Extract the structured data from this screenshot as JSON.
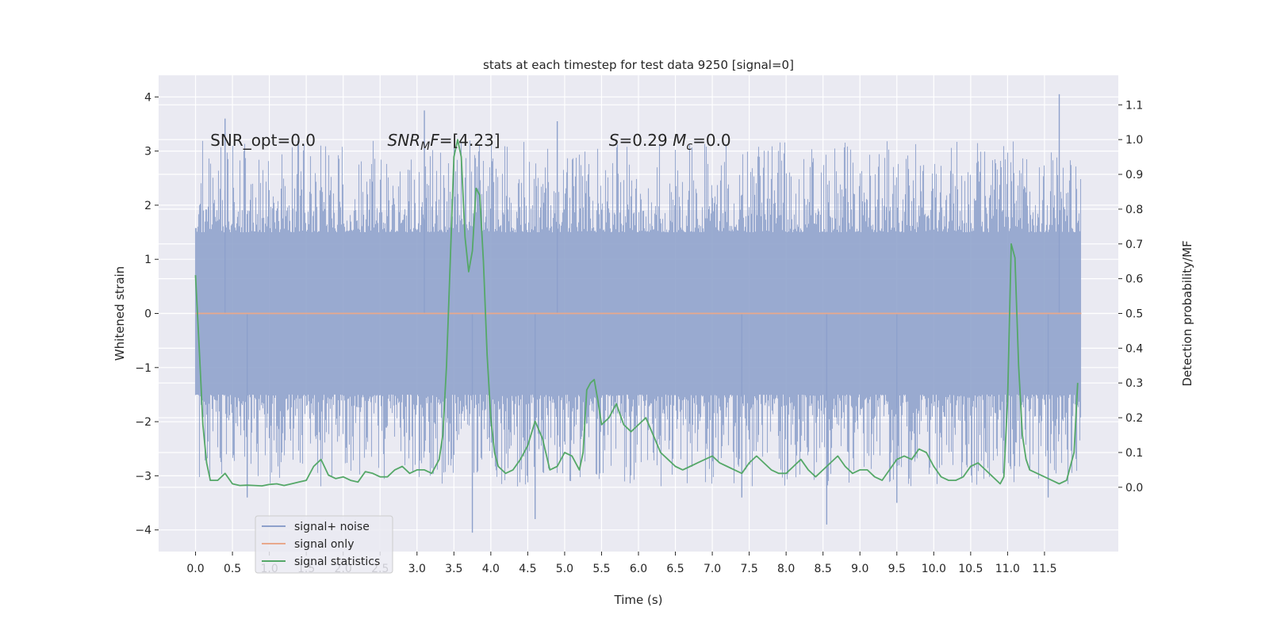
{
  "chart_data": {
    "type": "line",
    "title": "stats at each timestep for test data 9250 [signal=0]",
    "xlabel": "Time (s)",
    "ylabel": "Whitened strain",
    "y2label": "Detection probability/MF",
    "xlim": [
      -0.5,
      12.5
    ],
    "ylim": [
      -4.4,
      4.4
    ],
    "y2lim": [
      -0.185,
      1.185
    ],
    "x_ticks": [
      0.0,
      0.5,
      1.0,
      1.5,
      2.0,
      2.5,
      3.0,
      3.5,
      4.0,
      4.5,
      5.0,
      5.5,
      6.0,
      6.5,
      7.0,
      7.5,
      8.0,
      8.5,
      9.0,
      9.5,
      10.0,
      10.5,
      11.0,
      11.5
    ],
    "x_tick_labels": [
      "0.0",
      "0.5",
      "1.0",
      "1.5",
      "2.0",
      "2.5",
      "3.0",
      "3.5",
      "4.0",
      "4.5",
      "5.0",
      "5.5",
      "6.0",
      "6.5",
      "7.0",
      "7.5",
      "8.0",
      "8.5",
      "9.0",
      "9.5",
      "10.0",
      "10.5",
      "11.0",
      "11.5"
    ],
    "y_ticks": [
      -4,
      -3,
      -2,
      -1,
      0,
      1,
      2,
      3,
      4
    ],
    "y_tick_labels": [
      "−4",
      "−3",
      "−2",
      "−1",
      "0",
      "1",
      "2",
      "3",
      "4"
    ],
    "y2_ticks": [
      0.0,
      0.1,
      0.2,
      0.3,
      0.4,
      0.5,
      0.6,
      0.7,
      0.8,
      0.9,
      1.0,
      1.1
    ],
    "y2_tick_labels": [
      "0.0",
      "0.1",
      "0.2",
      "0.3",
      "0.4",
      "0.5",
      "0.6",
      "0.7",
      "0.8",
      "0.9",
      "1.0",
      "1.1"
    ],
    "grid": true,
    "legend_position": "bottom-left",
    "annotations": [
      {
        "x": 0.2,
        "y": 3.2,
        "parts": [
          {
            "text": "SNR_opt=0.0"
          }
        ]
      },
      {
        "x": 2.6,
        "y": 3.2,
        "parts": [
          {
            "text": "SNR",
            "italic": true
          },
          {
            "text": "M",
            "italic": true,
            "sub": true
          },
          {
            "text": "F",
            "italic": true
          },
          {
            "text": "=[4.23]"
          }
        ]
      },
      {
        "x": 5.6,
        "y": 3.2,
        "parts": [
          {
            "text": "S",
            "italic": true
          },
          {
            "text": "=0.29   "
          },
          {
            "text": "M",
            "italic": true
          },
          {
            "text": "c",
            "italic": true,
            "sub": true
          },
          {
            "text": "=0.0"
          }
        ]
      }
    ],
    "series": [
      {
        "name": "signal+ noise",
        "color": "#8da0cb",
        "axis": "left",
        "x_range": [
          0.0,
          12.0
        ],
        "envelope_typical": [
          -1.5,
          1.5
        ],
        "peaks": [
          {
            "x": 0.4,
            "y": 3.6
          },
          {
            "x": 3.1,
            "y": 3.75
          },
          {
            "x": 4.9,
            "y": 3.55
          },
          {
            "x": 11.7,
            "y": 4.05
          },
          {
            "x": 3.75,
            "y": -4.05
          },
          {
            "x": 4.6,
            "y": -3.8
          },
          {
            "x": 8.55,
            "y": -3.9
          },
          {
            "x": 9.5,
            "y": -3.5
          },
          {
            "x": 0.7,
            "y": -3.4
          },
          {
            "x": 7.4,
            "y": -3.4
          },
          {
            "x": 11.55,
            "y": -3.4
          }
        ]
      },
      {
        "name": "signal only",
        "color": "#e8a88c",
        "axis": "left",
        "x": [
          0.0,
          12.0
        ],
        "y": [
          0.0,
          0.0
        ]
      },
      {
        "name": "signal statistics",
        "color": "#55a868",
        "axis": "right",
        "x": [
          0.0,
          0.05,
          0.1,
          0.15,
          0.2,
          0.3,
          0.4,
          0.5,
          0.6,
          0.7,
          0.8,
          0.9,
          1.0,
          1.1,
          1.2,
          1.3,
          1.4,
          1.5,
          1.6,
          1.7,
          1.8,
          1.9,
          2.0,
          2.1,
          2.2,
          2.3,
          2.4,
          2.5,
          2.6,
          2.7,
          2.8,
          2.9,
          3.0,
          3.1,
          3.2,
          3.3,
          3.35,
          3.4,
          3.45,
          3.5,
          3.55,
          3.6,
          3.65,
          3.7,
          3.75,
          3.8,
          3.85,
          3.9,
          3.95,
          4.0,
          4.05,
          4.1,
          4.2,
          4.3,
          4.4,
          4.5,
          4.6,
          4.7,
          4.8,
          4.9,
          5.0,
          5.1,
          5.2,
          5.25,
          5.3,
          5.35,
          5.4,
          5.45,
          5.5,
          5.6,
          5.7,
          5.8,
          5.9,
          6.0,
          6.1,
          6.2,
          6.3,
          6.4,
          6.5,
          6.6,
          6.7,
          6.8,
          6.9,
          7.0,
          7.1,
          7.2,
          7.3,
          7.4,
          7.5,
          7.6,
          7.7,
          7.8,
          7.9,
          8.0,
          8.1,
          8.2,
          8.3,
          8.4,
          8.5,
          8.6,
          8.7,
          8.8,
          8.9,
          9.0,
          9.1,
          9.2,
          9.3,
          9.4,
          9.5,
          9.6,
          9.7,
          9.8,
          9.9,
          10.0,
          10.1,
          10.2,
          10.3,
          10.4,
          10.5,
          10.6,
          10.7,
          10.8,
          10.9,
          10.95,
          11.0,
          11.05,
          11.1,
          11.15,
          11.2,
          11.25,
          11.3,
          11.4,
          11.5,
          11.6,
          11.7,
          11.8,
          11.9,
          11.95
        ],
        "y": [
          0.61,
          0.4,
          0.18,
          0.07,
          0.02,
          0.02,
          0.04,
          0.01,
          0.005,
          0.006,
          0.005,
          0.004,
          0.008,
          0.01,
          0.005,
          0.01,
          0.015,
          0.02,
          0.06,
          0.08,
          0.035,
          0.025,
          0.03,
          0.02,
          0.015,
          0.045,
          0.04,
          0.03,
          0.03,
          0.05,
          0.06,
          0.04,
          0.05,
          0.05,
          0.04,
          0.08,
          0.15,
          0.35,
          0.65,
          0.95,
          1.0,
          0.95,
          0.72,
          0.62,
          0.68,
          0.86,
          0.84,
          0.65,
          0.38,
          0.2,
          0.1,
          0.06,
          0.04,
          0.05,
          0.08,
          0.12,
          0.19,
          0.14,
          0.05,
          0.06,
          0.1,
          0.09,
          0.05,
          0.1,
          0.28,
          0.3,
          0.31,
          0.25,
          0.18,
          0.2,
          0.24,
          0.18,
          0.16,
          0.18,
          0.2,
          0.15,
          0.1,
          0.08,
          0.06,
          0.05,
          0.06,
          0.07,
          0.08,
          0.09,
          0.07,
          0.06,
          0.05,
          0.04,
          0.07,
          0.09,
          0.07,
          0.05,
          0.04,
          0.04,
          0.06,
          0.08,
          0.05,
          0.03,
          0.05,
          0.07,
          0.09,
          0.06,
          0.04,
          0.05,
          0.05,
          0.03,
          0.02,
          0.05,
          0.08,
          0.09,
          0.08,
          0.11,
          0.1,
          0.06,
          0.03,
          0.02,
          0.02,
          0.03,
          0.06,
          0.07,
          0.05,
          0.03,
          0.01,
          0.03,
          0.25,
          0.7,
          0.66,
          0.35,
          0.15,
          0.08,
          0.05,
          0.04,
          0.03,
          0.02,
          0.01,
          0.02,
          0.1,
          0.3
        ]
      }
    ]
  }
}
